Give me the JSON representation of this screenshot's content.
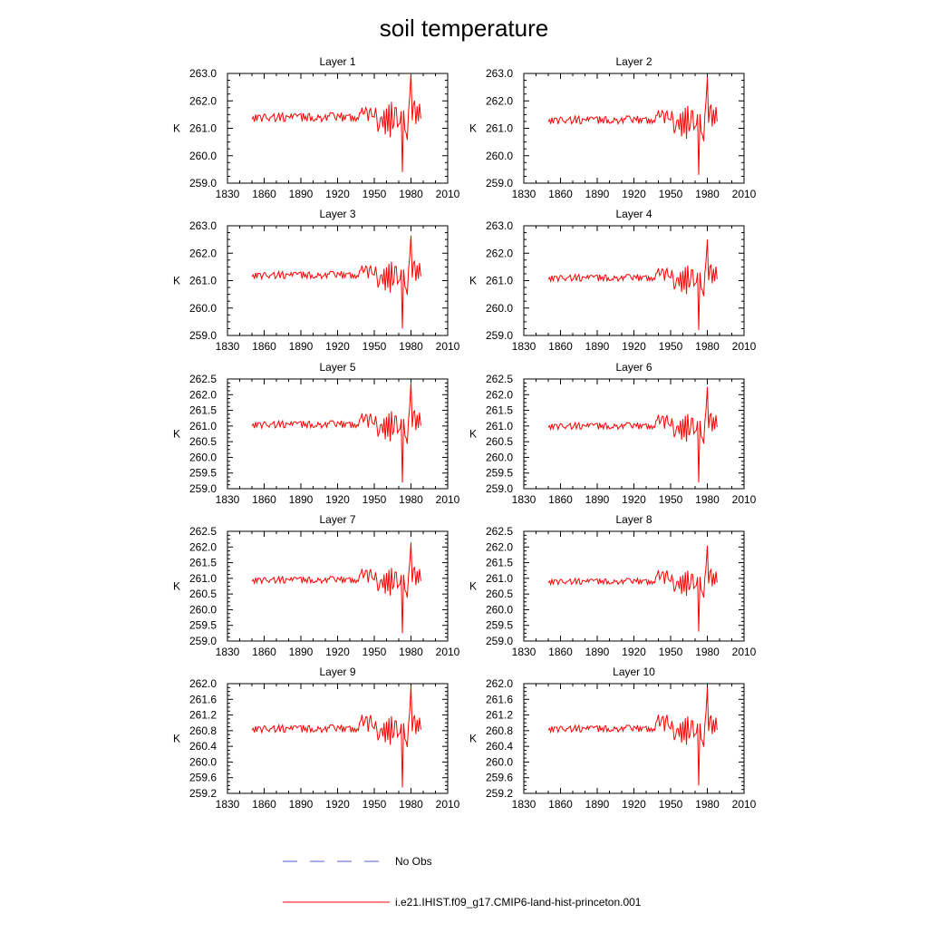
{
  "title": "soil temperature",
  "legend": {
    "items": [
      {
        "label": "No Obs",
        "color": "#5a5ad0",
        "dash": "dashed"
      },
      {
        "label": "i.e21.IHIST.f09_g17.CMIP6-land-hist-princeton.001",
        "color": "#ff0000",
        "dash": "solid"
      }
    ]
  },
  "chart_data": [
    {
      "type": "line",
      "title": "Layer 1",
      "ylabel": "K",
      "xlim": [
        1830,
        2010
      ],
      "ylim": [
        259.0,
        263.0
      ],
      "xticks": [
        1830,
        1860,
        1890,
        1920,
        1950,
        1980,
        2010
      ],
      "yticks": [
        259.0,
        260.0,
        261.0,
        262.0,
        263.0
      ],
      "yticklabels": [
        "259.0",
        "260.0",
        "261.0",
        "262.0",
        "263.0"
      ],
      "series": [
        {
          "name": "i.e21.IHIST.f09_g17.CMIP6-land-hist-princeton.001",
          "baseline": 261.4,
          "noise": 0.17,
          "late_amp": 0.8,
          "min": 259.4,
          "max": 263.0
        }
      ]
    },
    {
      "type": "line",
      "title": "Layer 2",
      "ylabel": "K",
      "xlim": [
        1830,
        2010
      ],
      "ylim": [
        259.0,
        263.0
      ],
      "xticks": [
        1830,
        1860,
        1890,
        1920,
        1950,
        1980,
        2010
      ],
      "yticks": [
        259.0,
        260.0,
        261.0,
        262.0,
        263.0
      ],
      "yticklabels": [
        "259.0",
        "260.0",
        "261.0",
        "262.0",
        "263.0"
      ],
      "series": [
        {
          "name": "i.e21.IHIST.f09_g17.CMIP6-land-hist-princeton.001",
          "baseline": 261.3,
          "noise": 0.15,
          "late_amp": 0.75,
          "min": 259.3,
          "max": 262.85
        }
      ]
    },
    {
      "type": "line",
      "title": "Layer 3",
      "ylabel": "K",
      "xlim": [
        1830,
        2010
      ],
      "ylim": [
        259.0,
        263.0
      ],
      "xticks": [
        1830,
        1860,
        1890,
        1920,
        1950,
        1980,
        2010
      ],
      "yticks": [
        259.0,
        260.0,
        261.0,
        262.0,
        263.0
      ],
      "yticklabels": [
        "259.0",
        "260.0",
        "261.0",
        "262.0",
        "263.0"
      ],
      "series": [
        {
          "name": "i.e21.IHIST.f09_g17.CMIP6-land-hist-princeton.001",
          "baseline": 261.2,
          "noise": 0.14,
          "late_amp": 0.7,
          "min": 259.25,
          "max": 262.65
        }
      ]
    },
    {
      "type": "line",
      "title": "Layer 4",
      "ylabel": "K",
      "xlim": [
        1830,
        2010
      ],
      "ylim": [
        259.0,
        263.0
      ],
      "xticks": [
        1830,
        1860,
        1890,
        1920,
        1950,
        1980,
        2010
      ],
      "yticks": [
        259.0,
        260.0,
        261.0,
        262.0,
        263.0
      ],
      "yticklabels": [
        "259.0",
        "260.0",
        "261.0",
        "262.0",
        "263.0"
      ],
      "series": [
        {
          "name": "i.e21.IHIST.f09_g17.CMIP6-land-hist-princeton.001",
          "baseline": 261.1,
          "noise": 0.13,
          "late_amp": 0.65,
          "min": 259.2,
          "max": 262.5
        }
      ]
    },
    {
      "type": "line",
      "title": "Layer 5",
      "ylabel": "K",
      "xlim": [
        1830,
        2010
      ],
      "ylim": [
        259.0,
        262.5
      ],
      "xticks": [
        1830,
        1860,
        1890,
        1920,
        1950,
        1980,
        2010
      ],
      "yticks": [
        259.0,
        259.5,
        260.0,
        260.5,
        261.0,
        261.5,
        262.0,
        262.5
      ],
      "yticklabels": [
        "259.0",
        "259.5",
        "260.0",
        "260.5",
        "261.0",
        "261.5",
        "262.0",
        "262.5"
      ],
      "series": [
        {
          "name": "i.e21.IHIST.f09_g17.CMIP6-land-hist-princeton.001",
          "baseline": 261.05,
          "noise": 0.12,
          "late_amp": 0.6,
          "min": 259.2,
          "max": 262.4
        }
      ]
    },
    {
      "type": "line",
      "title": "Layer 6",
      "ylabel": "K",
      "xlim": [
        1830,
        2010
      ],
      "ylim": [
        259.0,
        262.5
      ],
      "xticks": [
        1830,
        1860,
        1890,
        1920,
        1950,
        1980,
        2010
      ],
      "yticks": [
        259.0,
        259.5,
        260.0,
        260.5,
        261.0,
        261.5,
        262.0,
        262.5
      ],
      "yticklabels": [
        "259.0",
        "259.5",
        "260.0",
        "260.5",
        "261.0",
        "261.5",
        "262.0",
        "262.5"
      ],
      "series": [
        {
          "name": "i.e21.IHIST.f09_g17.CMIP6-land-hist-princeton.001",
          "baseline": 261.0,
          "noise": 0.11,
          "late_amp": 0.55,
          "min": 259.2,
          "max": 262.25
        }
      ]
    },
    {
      "type": "line",
      "title": "Layer 7",
      "ylabel": "K",
      "xlim": [
        1830,
        2010
      ],
      "ylim": [
        259.0,
        262.5
      ],
      "xticks": [
        1830,
        1860,
        1890,
        1920,
        1950,
        1980,
        2010
      ],
      "yticks": [
        259.0,
        259.5,
        260.0,
        260.5,
        261.0,
        261.5,
        262.0,
        262.5
      ],
      "yticklabels": [
        "259.0",
        "259.5",
        "260.0",
        "260.5",
        "261.0",
        "261.5",
        "262.0",
        "262.5"
      ],
      "series": [
        {
          "name": "i.e21.IHIST.f09_g17.CMIP6-land-hist-princeton.001",
          "baseline": 260.95,
          "noise": 0.11,
          "late_amp": 0.55,
          "min": 259.25,
          "max": 262.15
        }
      ]
    },
    {
      "type": "line",
      "title": "Layer 8",
      "ylabel": "K",
      "xlim": [
        1830,
        2010
      ],
      "ylim": [
        259.0,
        262.5
      ],
      "xticks": [
        1830,
        1860,
        1890,
        1920,
        1950,
        1980,
        2010
      ],
      "yticks": [
        259.0,
        259.5,
        260.0,
        260.5,
        261.0,
        261.5,
        262.0,
        262.5
      ],
      "yticklabels": [
        "259.0",
        "259.5",
        "260.0",
        "260.5",
        "261.0",
        "261.5",
        "262.0",
        "262.5"
      ],
      "series": [
        {
          "name": "i.e21.IHIST.f09_g17.CMIP6-land-hist-princeton.001",
          "baseline": 260.9,
          "noise": 0.1,
          "late_amp": 0.5,
          "min": 259.3,
          "max": 262.05
        }
      ]
    },
    {
      "type": "line",
      "title": "Layer 9",
      "ylabel": "K",
      "xlim": [
        1830,
        2010
      ],
      "ylim": [
        259.2,
        262.0
      ],
      "xticks": [
        1830,
        1860,
        1890,
        1920,
        1950,
        1980,
        2010
      ],
      "yticks": [
        259.2,
        259.6,
        260.0,
        260.4,
        260.8,
        261.2,
        261.6,
        262.0
      ],
      "yticklabels": [
        "259.2",
        "259.6",
        "260.0",
        "260.4",
        "260.8",
        "261.2",
        "261.6",
        "262.0"
      ],
      "series": [
        {
          "name": "i.e21.IHIST.f09_g17.CMIP6-land-hist-princeton.001",
          "baseline": 260.85,
          "noise": 0.1,
          "late_amp": 0.45,
          "min": 259.35,
          "max": 261.95
        }
      ]
    },
    {
      "type": "line",
      "title": "Layer 10",
      "ylabel": "K",
      "xlim": [
        1830,
        2010
      ],
      "ylim": [
        259.2,
        262.0
      ],
      "xticks": [
        1830,
        1860,
        1890,
        1920,
        1950,
        1980,
        2010
      ],
      "yticks": [
        259.2,
        259.6,
        260.0,
        260.4,
        260.8,
        261.2,
        261.6,
        262.0
      ],
      "yticklabels": [
        "259.2",
        "259.6",
        "260.0",
        "260.4",
        "260.8",
        "261.2",
        "261.6",
        "262.0"
      ],
      "series": [
        {
          "name": "i.e21.IHIST.f09_g17.CMIP6-land-hist-princeton.001",
          "baseline": 260.85,
          "noise": 0.09,
          "late_amp": 0.45,
          "min": 259.4,
          "max": 261.9
        }
      ]
    }
  ]
}
